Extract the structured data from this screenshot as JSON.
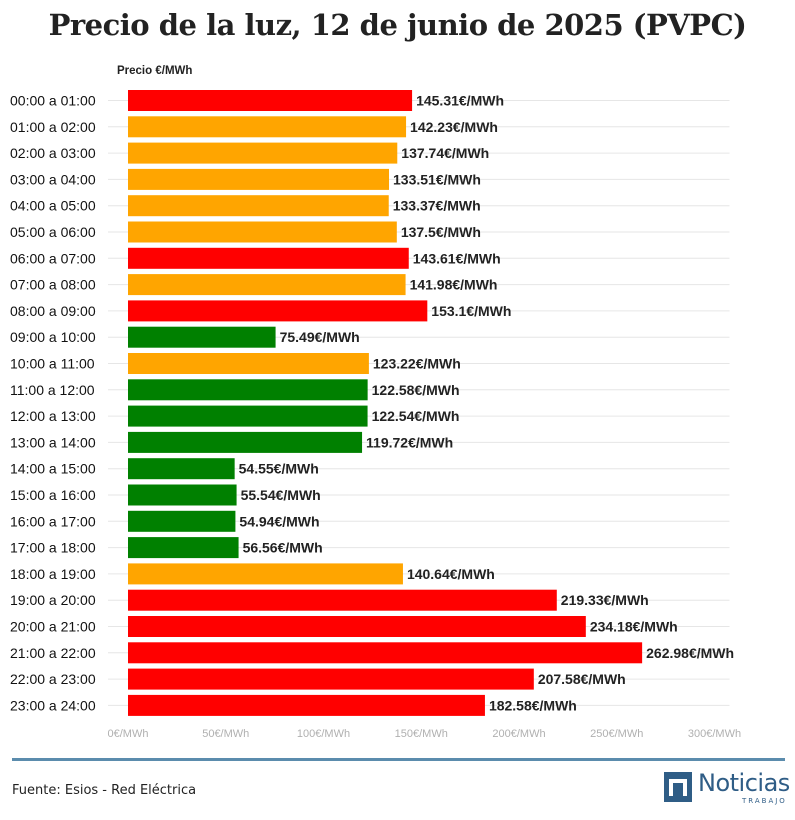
{
  "chart_data": {
    "type": "bar",
    "orientation": "horizontal",
    "title": "Precio de la luz, 12 de junio de 2025 (PVPC)",
    "ylabel": "Precio €/MWh",
    "xlim": [
      0,
      300
    ],
    "xticks": [
      "0€/MWh",
      "50€/MWh",
      "100€/MWh",
      "150€/MWh",
      "200€/MWh",
      "250€/MWh",
      "300€/MWh"
    ],
    "xtick_values": [
      0,
      50,
      100,
      150,
      200,
      250,
      300
    ],
    "categories": [
      "00:00 a 01:00",
      "01:00 a 02:00",
      "02:00 a 03:00",
      "03:00 a 04:00",
      "04:00 a 05:00",
      "05:00 a 06:00",
      "06:00 a 07:00",
      "07:00 a 08:00",
      "08:00 a 09:00",
      "09:00 a 10:00",
      "10:00 a 11:00",
      "11:00 a 12:00",
      "12:00 a 13:00",
      "13:00 a 14:00",
      "14:00 a 15:00",
      "15:00 a 16:00",
      "16:00 a 17:00",
      "17:00 a 18:00",
      "18:00 a 19:00",
      "19:00 a 20:00",
      "20:00 a 21:00",
      "21:00 a 22:00",
      "22:00 a 23:00",
      "23:00 a 24:00"
    ],
    "values": [
      145.31,
      142.23,
      137.74,
      133.51,
      133.37,
      137.5,
      143.61,
      141.98,
      153.1,
      75.49,
      123.22,
      122.58,
      122.54,
      119.72,
      54.55,
      55.54,
      54.94,
      56.56,
      140.64,
      219.33,
      234.18,
      262.98,
      207.58,
      182.58
    ],
    "labels": [
      "145.31€/MWh",
      "142.23€/MWh",
      "137.74€/MWh",
      "133.51€/MWh",
      "133.37€/MWh",
      "137.5€/MWh",
      "143.61€/MWh",
      "141.98€/MWh",
      "153.1€/MWh",
      "75.49€/MWh",
      "123.22€/MWh",
      "122.58€/MWh",
      "122.54€/MWh",
      "119.72€/MWh",
      "54.55€/MWh",
      "55.54€/MWh",
      "54.94€/MWh",
      "56.56€/MWh",
      "140.64€/MWh",
      "219.33€/MWh",
      "234.18€/MWh",
      "262.98€/MWh",
      "207.58€/MWh",
      "182.58€/MWh"
    ],
    "levels": [
      "high",
      "medium",
      "medium",
      "medium",
      "medium",
      "medium",
      "high",
      "medium",
      "high",
      "low",
      "medium",
      "low",
      "low",
      "low",
      "low",
      "low",
      "low",
      "low",
      "medium",
      "high",
      "high",
      "high",
      "high",
      "high"
    ],
    "level_colors": {
      "high": "#ff0000",
      "medium": "#ffa500",
      "low": "#008000"
    }
  },
  "footer": {
    "source": "Fuente: Esios - Red Eléctrica",
    "logo_word": "Noticias",
    "logo_sub": "TRABAJO"
  }
}
